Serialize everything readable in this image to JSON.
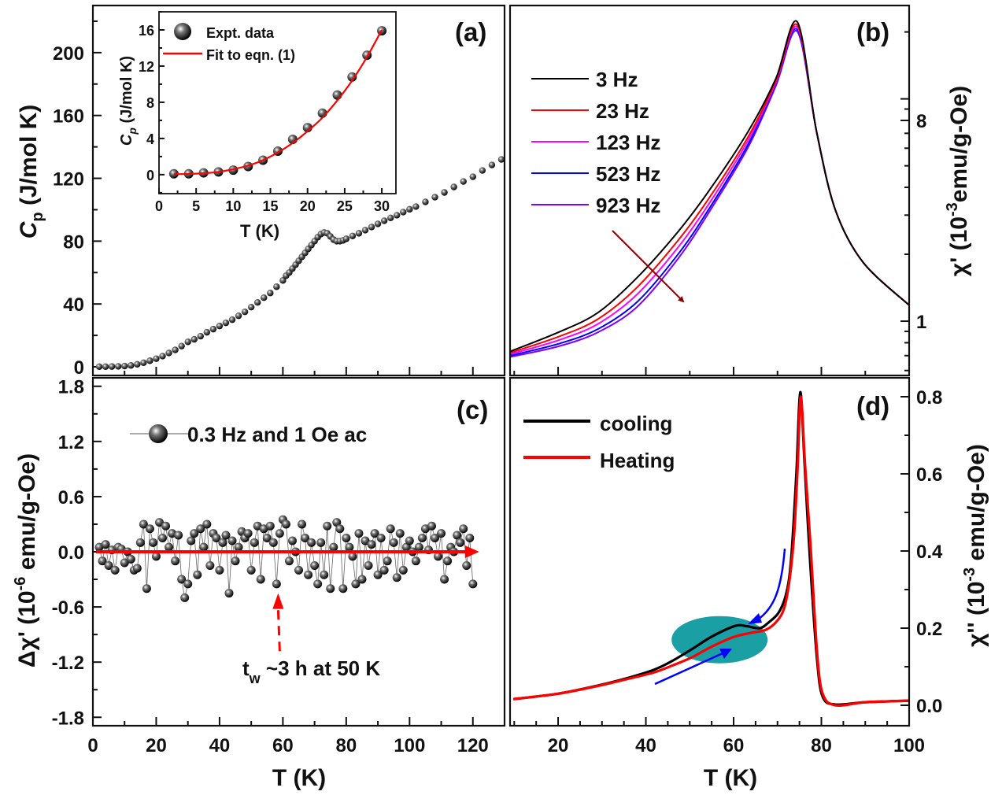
{
  "chart_data": [
    {
      "panel_label": "(a)",
      "type": "scatter",
      "ylabel": {
        "main": "C",
        "sub": "p",
        "rest": " (J/mol K)"
      },
      "xlim": [
        0,
        130
      ],
      "ylim": [
        -5.5,
        230
      ],
      "y_ticks": [
        0,
        40,
        80,
        120,
        160,
        200
      ],
      "x": [
        2,
        4,
        6,
        8,
        10,
        12,
        14,
        16,
        18,
        20,
        22,
        24,
        26,
        28,
        30,
        32,
        34,
        36,
        38,
        40,
        42,
        44,
        46,
        48,
        50,
        52,
        54,
        56,
        58,
        60,
        61,
        62,
        63,
        64,
        65,
        66,
        67,
        68,
        69,
        70,
        71,
        72,
        73,
        74,
        75,
        76,
        77,
        78,
        79,
        80,
        82,
        84,
        86,
        88,
        90,
        92,
        94,
        96,
        98,
        100,
        102,
        105,
        108,
        111,
        114,
        117,
        120,
        123,
        126,
        129
      ],
      "y": [
        0.1,
        0.1,
        0.2,
        0.3,
        0.5,
        0.9,
        1.6,
        2.6,
        3.9,
        5.2,
        6.8,
        8.8,
        10.8,
        13.2,
        15.9,
        17.5,
        19.5,
        22,
        24,
        26,
        28,
        30,
        32.5,
        35,
        38,
        41,
        44,
        47,
        51,
        55,
        58,
        60,
        62.5,
        65,
        67.5,
        70,
        72.5,
        75,
        77.5,
        80,
        82.5,
        84.5,
        85.5,
        85,
        83,
        81,
        80,
        80,
        80.5,
        81.5,
        83.3,
        85,
        87,
        89,
        91,
        93,
        94.8,
        96.5,
        98.5,
        100.3,
        102,
        105,
        108,
        111,
        114.5,
        118,
        121,
        125,
        128.5,
        132
      ],
      "inset": {
        "type": "scatter+line",
        "xlabel": "T (K)",
        "ylabel": {
          "main": "C",
          "sub": "p",
          "rest": " (J/mol K)"
        },
        "xlim": [
          0,
          31.9
        ],
        "ylim": [
          -2.1,
          18
        ],
        "x_ticks": [
          0,
          5,
          10,
          15,
          20,
          25,
          30
        ],
        "y_ticks": [
          0,
          4,
          8,
          12,
          16
        ],
        "legend": [
          {
            "name": "Expt. data",
            "marker": "ball"
          },
          {
            "name": "Fit to eqn. (1)",
            "color": "#ff0000"
          }
        ],
        "data_x": [
          2,
          4,
          6,
          8,
          10,
          12,
          14,
          16,
          18,
          20,
          22,
          24,
          26,
          28,
          30
        ],
        "data_y": [
          0.1,
          0.1,
          0.2,
          0.3,
          0.5,
          0.9,
          1.6,
          2.6,
          3.9,
          5.2,
          6.8,
          8.8,
          10.8,
          13.2,
          15.9
        ],
        "fit_x": [
          2,
          4,
          6,
          8,
          10,
          12,
          14,
          16,
          18,
          20,
          22,
          24,
          26,
          28,
          30
        ],
        "fit_y": [
          0.05,
          0.08,
          0.15,
          0.3,
          0.6,
          1.0,
          1.6,
          2.45,
          3.5,
          4.8,
          6.3,
          8.2,
          10.4,
          13.0,
          16.0
        ]
      }
    },
    {
      "panel_label": "(b)",
      "type": "line",
      "ylabel": {
        "main": "χ'",
        "pre": " (10",
        "sup": "-3",
        "rest": "emu/g-Oe)"
      },
      "y_axis_side": "right",
      "y_scale": "log",
      "xlim": [
        9.05,
        100
      ],
      "ylim": [
        0.57,
        26.3
      ],
      "y_tick_labels": [
        {
          "value": 1,
          "label": "1"
        },
        {
          "value": 8,
          "label": "8"
        }
      ],
      "x": [
        9,
        20,
        29,
        38,
        47.5,
        54.7,
        63.3,
        69.6,
        74.5,
        78.9,
        83.2,
        89.5,
        100
      ],
      "series": [
        {
          "name": "3 Hz",
          "color": "#000000",
          "values": [
            0.73,
            0.89,
            1.09,
            1.57,
            2.55,
            3.94,
            7.13,
            12.3,
            22.2,
            7.13,
            3.16,
            1.84,
            1.18
          ]
        },
        {
          "name": "23 Hz",
          "color": "#ff0000",
          "values": [
            0.72,
            0.85,
            1.02,
            1.42,
            2.33,
            3.65,
            6.75,
            12.0,
            21.5,
            7.13,
            3.16,
            1.84,
            1.18
          ]
        },
        {
          "name": "123 Hz",
          "color": "#ff00ff",
          "values": [
            0.71,
            0.82,
            0.97,
            1.32,
            2.17,
            3.45,
            6.5,
            11.8,
            21.0,
            7.13,
            3.16,
            1.84,
            1.18
          ]
        },
        {
          "name": "523 Hz",
          "color": "#0000ff",
          "values": [
            0.7,
            0.79,
            0.92,
            1.22,
            2.02,
            3.27,
            6.25,
            11.6,
            20.5,
            7.13,
            3.16,
            1.84,
            1.18
          ]
        },
        {
          "name": "923 Hz",
          "color": "#8000ff",
          "values": [
            0.69,
            0.77,
            0.89,
            1.16,
            1.93,
            3.16,
            6.06,
            11.4,
            20.1,
            7.13,
            3.16,
            1.84,
            1.18
          ]
        }
      ],
      "legend_position": "left",
      "arrow_color": "#8b0000"
    },
    {
      "panel_label": "(c)",
      "type": "scatter",
      "xlabel": "T (K)",
      "ylabel": {
        "main": "Δχ'",
        "pre": " (10",
        "sup": "-6",
        "rest": " emu/g-Oe)"
      },
      "xlim": [
        0,
        130
      ],
      "ylim": [
        -1.892,
        1.892
      ],
      "x_ticks": [
        0,
        20,
        40,
        60,
        80,
        100,
        120
      ],
      "y_ticks": [
        "1.8",
        "1.2",
        "0.6",
        "0.0",
        "-0.6",
        "-1.2",
        "-1.8"
      ],
      "legend": "0.3 Hz and 1 Oe ac",
      "annotation": {
        "main": "t",
        "sub": "w",
        "rest": " ~3 h at 50 K",
        "color": "#ff0000"
      },
      "x": [
        2,
        3,
        4,
        5,
        6,
        7,
        8,
        9,
        10,
        11,
        12,
        13,
        14,
        15,
        16,
        17,
        18,
        19,
        20,
        21,
        22,
        23,
        24,
        25,
        26,
        27,
        28,
        29,
        30,
        31,
        32,
        33,
        34,
        35,
        36,
        37,
        38,
        39,
        40,
        41,
        42,
        43,
        44,
        45,
        46,
        47,
        48,
        49,
        50,
        51,
        52,
        53,
        54,
        55,
        56,
        57,
        58,
        59,
        60,
        61,
        62,
        63,
        64,
        65,
        66,
        67,
        68,
        69,
        70,
        71,
        72,
        73,
        74,
        75,
        76,
        77,
        78,
        79,
        80,
        81,
        82,
        83,
        84,
        85,
        86,
        87,
        88,
        89,
        90,
        91,
        92,
        93,
        94,
        95,
        96,
        97,
        98,
        99,
        100,
        101,
        102,
        103,
        104,
        105,
        106,
        107,
        108,
        109,
        110,
        111,
        112,
        113,
        114,
        115,
        116,
        117,
        118,
        119,
        120
      ],
      "y": [
        0.05,
        -0.1,
        0.08,
        -0.15,
        0.02,
        -0.2,
        0.05,
        0.03,
        -0.12,
        0.0,
        -0.08,
        -0.2,
        -0.18,
        0.1,
        0.3,
        -0.4,
        0.25,
        0.1,
        -0.05,
        0.32,
        0.15,
        0.28,
        0.05,
        0.2,
        -0.1,
        0.18,
        -0.3,
        -0.5,
        -0.35,
        0.12,
        0.2,
        -0.25,
        0.25,
        0.05,
        0.3,
        -0.15,
        0.2,
        0.15,
        -0.2,
        0.1,
        0.18,
        -0.45,
        0.12,
        -0.1,
        0.05,
        0.22,
        0.15,
        0.2,
        -0.2,
        0.1,
        0.28,
        -0.3,
        0.25,
        0.15,
        0.28,
        0.1,
        -0.35,
        0.2,
        0.35,
        0.3,
        -0.1,
        0.12,
        0.0,
        -0.2,
        0.3,
        0.15,
        -0.25,
        0.1,
        -0.15,
        -0.35,
        0.1,
        -0.25,
        0.28,
        -0.4,
        0.05,
        0.32,
        0.25,
        -0.4,
        0.15,
        0.05,
        -0.05,
        -0.35,
        0.2,
        -0.3,
        0.12,
        -0.15,
        0.08,
        0.2,
        -0.25,
        0.15,
        -0.2,
        -0.1,
        0.25,
        0.1,
        -0.28,
        0.2,
        -0.2,
        0.05,
        0.12,
        0.0,
        -0.1,
        0.05,
        0.15,
        0.25,
        0.02,
        0.28,
        0.15,
        -0.05,
        0.2,
        -0.3,
        -0.1,
        0.05,
        0.0,
        0.18,
        0.1,
        0.25,
        -0.15,
        0.15,
        -0.35
      ]
    },
    {
      "panel_label": "(d)",
      "type": "line",
      "xlabel": "T (K)",
      "ylabel": {
        "main": "χ''",
        "pre": " (10",
        "sup": "-3",
        "rest": " emu/g-Oe)"
      },
      "y_axis_side": "right",
      "xlim": [
        9.05,
        100
      ],
      "ylim": [
        -0.053,
        0.849
      ],
      "x_ticks": [
        20,
        40,
        60,
        80,
        100
      ],
      "y_ticks": [
        "0.0",
        "0.2",
        "0.4",
        "0.6",
        "0.8"
      ],
      "series": [
        {
          "name": "cooling",
          "color": "#000000",
          "x": [
            9.8,
            20,
            29,
            35,
            41.8,
            46,
            50.4,
            55,
            60.4,
            63,
            66,
            68,
            70.3,
            72,
            73.1,
            74.3,
            75.2,
            76.2,
            77.4,
            79,
            80.3,
            83.2,
            90,
            100
          ],
          "values": [
            0.016,
            0.03,
            0.051,
            0.068,
            0.092,
            0.115,
            0.145,
            0.178,
            0.206,
            0.205,
            0.2,
            0.215,
            0.241,
            0.29,
            0.378,
            0.6,
            0.812,
            0.62,
            0.378,
            0.12,
            0.022,
            0.002,
            0.008,
            0.012
          ]
        },
        {
          "name": "Heating",
          "color": "#ff0000",
          "x": [
            9.8,
            20,
            29,
            35,
            41.8,
            46,
            50.4,
            55,
            60,
            64,
            67.4,
            70,
            71.6,
            72.8,
            73.8,
            74.6,
            75.3,
            76.3,
            77.5,
            79,
            80.3,
            83.2,
            90,
            100
          ],
          "values": [
            0.016,
            0.03,
            0.05,
            0.066,
            0.085,
            0.103,
            0.124,
            0.152,
            0.177,
            0.188,
            0.196,
            0.22,
            0.255,
            0.33,
            0.445,
            0.62,
            0.8,
            0.62,
            0.42,
            0.14,
            0.03,
            0.0,
            0.008,
            0.012
          ]
        }
      ],
      "highlight_color": "#1a9fa5",
      "arrow_color": "#0000ff"
    }
  ]
}
